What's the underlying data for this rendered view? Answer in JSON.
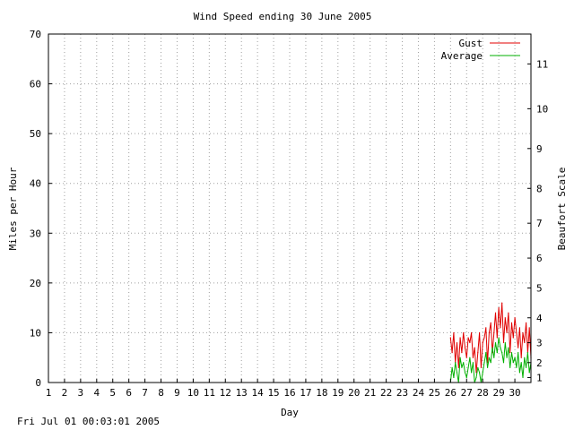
{
  "footer": {
    "timestamp": "Fri Jul 01 00:03:01 2005"
  },
  "chart_data": {
    "type": "line",
    "title": "Wind Speed ending 30 June 2005",
    "xlabel": "Day",
    "ylabel": "Miles per Hour",
    "y2label": "Beaufort Scale",
    "xlim": [
      1,
      31
    ],
    "ylim": [
      0,
      70
    ],
    "x_ticks": [
      "1",
      "2",
      "3",
      "4",
      "5",
      "6",
      "7",
      "8",
      "9",
      "10",
      "11",
      "12",
      "13",
      "14",
      "15",
      "16",
      "17",
      "18",
      "19",
      "20",
      "21",
      "22",
      "23",
      "24",
      "25",
      "26",
      "27",
      "28",
      "29",
      "30"
    ],
    "y_ticks": [
      "0",
      "10",
      "20",
      "30",
      "40",
      "50",
      "60",
      "70"
    ],
    "beaufort_ticks": [
      {
        "label": "1",
        "mph": 1.0
      },
      {
        "label": "2",
        "mph": 4.0
      },
      {
        "label": "3",
        "mph": 8.0
      },
      {
        "label": "4",
        "mph": 13.0
      },
      {
        "label": "5",
        "mph": 19.0
      },
      {
        "label": "6",
        "mph": 25.0
      },
      {
        "label": "7",
        "mph": 32.0
      },
      {
        "label": "8",
        "mph": 39.0
      },
      {
        "label": "9",
        "mph": 47.0
      },
      {
        "label": "10",
        "mph": 55.0
      },
      {
        "label": "11",
        "mph": 64.0
      }
    ],
    "grid": true,
    "legend_position": "top-right",
    "series": [
      {
        "name": "Gust",
        "color": "#e00000",
        "x": [
          26.0,
          26.1,
          26.2,
          26.3,
          26.4,
          26.5,
          26.6,
          26.7,
          26.8,
          26.9,
          27.0,
          27.1,
          27.2,
          27.3,
          27.4,
          27.5,
          27.6,
          27.7,
          27.8,
          27.9,
          28.0,
          28.1,
          28.2,
          28.3,
          28.4,
          28.5,
          28.6,
          28.7,
          28.8,
          28.9,
          29.0,
          29.1,
          29.2,
          29.3,
          29.4,
          29.5,
          29.6,
          29.7,
          29.8,
          29.9,
          30.0,
          30.1,
          30.2,
          30.3,
          30.4,
          30.5,
          30.6,
          30.7,
          30.8,
          30.9,
          31.0
        ],
        "y": [
          9,
          6,
          10,
          4,
          8,
          3,
          9,
          6,
          10,
          7,
          5,
          9,
          8,
          10,
          5,
          7,
          2,
          6,
          10,
          3,
          8,
          9,
          11,
          4,
          10,
          12,
          6,
          10,
          14,
          9,
          15,
          11,
          16,
          8,
          13,
          10,
          14,
          6,
          12,
          9,
          13,
          10,
          7,
          11,
          5,
          10,
          8,
          12,
          6,
          11,
          5
        ]
      },
      {
        "name": "Average",
        "color": "#00b000",
        "x": [
          26.0,
          26.1,
          26.2,
          26.3,
          26.4,
          26.5,
          26.6,
          26.7,
          26.8,
          26.9,
          27.0,
          27.1,
          27.2,
          27.3,
          27.4,
          27.5,
          27.6,
          27.7,
          27.8,
          27.9,
          28.0,
          28.1,
          28.2,
          28.3,
          28.4,
          28.5,
          28.6,
          28.7,
          28.8,
          28.9,
          29.0,
          29.1,
          29.2,
          29.3,
          29.4,
          29.5,
          29.6,
          29.7,
          29.8,
          29.9,
          30.0,
          30.1,
          30.2,
          30.3,
          30.4,
          30.5,
          30.6,
          30.7,
          30.8,
          30.9,
          31.0
        ],
        "y": [
          0,
          3,
          1,
          4,
          2,
          0,
          5,
          3,
          4,
          2,
          1,
          3,
          5,
          2,
          4,
          0,
          1,
          3,
          2,
          0,
          2,
          4,
          6,
          3,
          5,
          4,
          7,
          5,
          8,
          6,
          9,
          7,
          6,
          4,
          8,
          5,
          7,
          3,
          6,
          4,
          5,
          3,
          6,
          2,
          4,
          1,
          5,
          3,
          6,
          2,
          4
        ]
      }
    ]
  }
}
